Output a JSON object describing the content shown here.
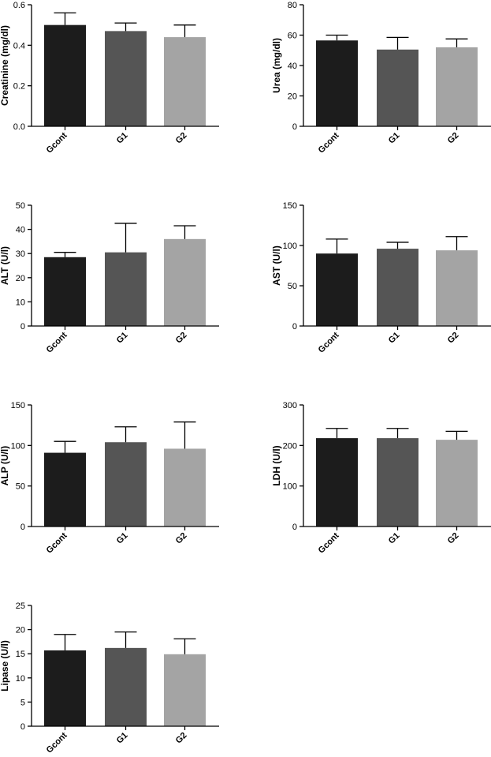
{
  "chart_data": [
    {
      "type": "bar",
      "categories": [
        "Gcont",
        "G1",
        "G2"
      ],
      "values": [
        0.5,
        0.47,
        0.44
      ],
      "errors": [
        0.06,
        0.04,
        0.06
      ],
      "ylabel": "Creatinine (mg/dl)",
      "ylim": [
        0,
        0.6
      ],
      "yticks": [
        0.0,
        0.2,
        0.4,
        0.6
      ],
      "ytick_labels": [
        "0.0",
        "0.2",
        "0.4",
        "0.6"
      ],
      "colors": [
        "#1c1c1c",
        "#555555",
        "#a4a4a4"
      ]
    },
    {
      "type": "bar",
      "categories": [
        "Gcont",
        "G1",
        "G2"
      ],
      "values": [
        56.5,
        50.5,
        52
      ],
      "errors": [
        3.5,
        8,
        5.5
      ],
      "ylabel": "Urea (mg/dl)",
      "ylim": [
        0,
        80
      ],
      "yticks": [
        0,
        20,
        40,
        60,
        80
      ],
      "ytick_labels": [
        "0",
        "20",
        "40",
        "60",
        "80"
      ],
      "colors": [
        "#1c1c1c",
        "#555555",
        "#a4a4a4"
      ]
    },
    {
      "type": "bar",
      "categories": [
        "Gcont",
        "G1",
        "G2"
      ],
      "values": [
        28.5,
        30.5,
        36
      ],
      "errors": [
        2,
        12,
        5.5
      ],
      "ylabel": "ALT (U/l)",
      "ylim": [
        0,
        50
      ],
      "yticks": [
        0,
        10,
        20,
        30,
        40,
        50
      ],
      "ytick_labels": [
        "0",
        "10",
        "20",
        "30",
        "40",
        "50"
      ],
      "colors": [
        "#1c1c1c",
        "#555555",
        "#a4a4a4"
      ]
    },
    {
      "type": "bar",
      "categories": [
        "Gcont",
        "G1",
        "G2"
      ],
      "values": [
        90,
        96,
        94
      ],
      "errors": [
        18,
        8,
        17
      ],
      "ylabel": "AST (U/l)",
      "ylim": [
        0,
        150
      ],
      "yticks": [
        0,
        50,
        100,
        150
      ],
      "ytick_labels": [
        "0",
        "50",
        "100",
        "150"
      ],
      "colors": [
        "#1c1c1c",
        "#555555",
        "#a4a4a4"
      ]
    },
    {
      "type": "bar",
      "categories": [
        "Gcont",
        "G1",
        "G2"
      ],
      "values": [
        91,
        104,
        96
      ],
      "errors": [
        14,
        19,
        33
      ],
      "ylabel": "ALP (U/l)",
      "ylim": [
        0,
        150
      ],
      "yticks": [
        0,
        50,
        100,
        150
      ],
      "ytick_labels": [
        "0",
        "50",
        "100",
        "150"
      ],
      "colors": [
        "#1c1c1c",
        "#555555",
        "#a4a4a4"
      ]
    },
    {
      "type": "bar",
      "categories": [
        "Gcont",
        "G1",
        "G2"
      ],
      "values": [
        218,
        218,
        214
      ],
      "errors": [
        24,
        24,
        21
      ],
      "ylabel": "LDH (U/l)",
      "ylim": [
        0,
        300
      ],
      "yticks": [
        0,
        100,
        200,
        300
      ],
      "ytick_labels": [
        "0",
        "100",
        "200",
        "300"
      ],
      "colors": [
        "#1c1c1c",
        "#555555",
        "#a4a4a4"
      ]
    },
    {
      "type": "bar",
      "categories": [
        "Gcont",
        "G1",
        "G2"
      ],
      "values": [
        15.7,
        16.2,
        14.9
      ],
      "errors": [
        3.3,
        3.3,
        3.2
      ],
      "ylabel": "Lipase (U/l)",
      "ylim": [
        0,
        25
      ],
      "yticks": [
        0,
        5,
        10,
        15,
        20,
        25
      ],
      "ytick_labels": [
        "0",
        "5",
        "10",
        "15",
        "20",
        "25"
      ],
      "colors": [
        "#1c1c1c",
        "#555555",
        "#a4a4a4"
      ]
    }
  ]
}
